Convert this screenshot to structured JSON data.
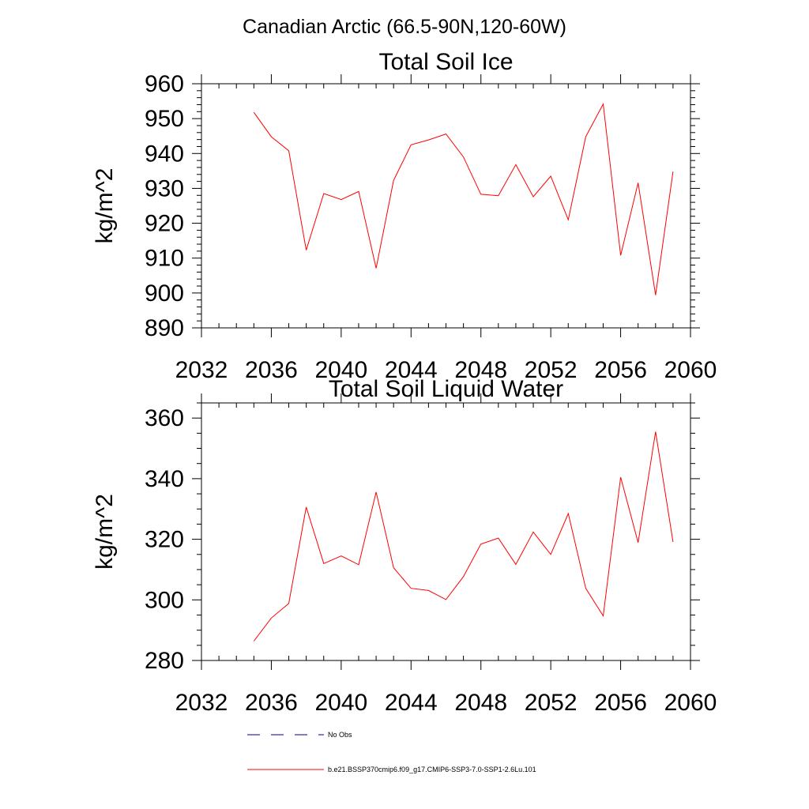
{
  "figure": {
    "suptitle": "Canadian Arctic (66.5-90N,120-60W)",
    "legend": {
      "entries": [
        {
          "label": "No Obs",
          "color": "#000080",
          "style": "dashed"
        },
        {
          "label": "b.e21.BSSP370cmip6.f09_g17.CMIP6-SSP3-7.0-SSP1-2.6Lu.101",
          "color": "#ff0000",
          "style": "solid"
        }
      ]
    }
  },
  "chart_data": [
    {
      "type": "line",
      "title": "Total Soil Ice",
      "xlabel": "",
      "ylabel": "kg/m^2",
      "xlim": [
        2032,
        2060
      ],
      "ylim": [
        890,
        960
      ],
      "xticks": [
        2032,
        2036,
        2040,
        2044,
        2048,
        2052,
        2056,
        2060
      ],
      "yticks": [
        890,
        900,
        910,
        920,
        930,
        940,
        950,
        960
      ],
      "x_minor_step": 1,
      "y_minor_step": 2,
      "grid": false,
      "series": [
        {
          "color": "#ff0000",
          "x": [
            2035,
            2036,
            2037,
            2038,
            2039,
            2040,
            2041,
            2042,
            2043,
            2044,
            2045,
            2046,
            2047,
            2048,
            2049,
            2050,
            2051,
            2052,
            2053,
            2054,
            2055,
            2056,
            2057,
            2058,
            2059
          ],
          "y": [
            951.8,
            944.8,
            940.8,
            912.3,
            928.5,
            926.8,
            929.1,
            907.1,
            932.3,
            942.5,
            943.9,
            945.6,
            939.0,
            928.3,
            927.9,
            936.8,
            927.6,
            933.5,
            921.0,
            944.8,
            954.2,
            910.8,
            931.6,
            899.4,
            934.8
          ]
        }
      ]
    },
    {
      "type": "line",
      "title": "Total Soil Liquid Water",
      "xlabel": "",
      "ylabel": "kg/m^2",
      "xlim": [
        2032,
        2060
      ],
      "ylim": [
        280,
        365
      ],
      "xticks": [
        2032,
        2036,
        2040,
        2044,
        2048,
        2052,
        2056,
        2060
      ],
      "yticks": [
        280,
        300,
        320,
        340,
        360
      ],
      "x_minor_step": 1,
      "y_minor_step": 5,
      "grid": false,
      "series": [
        {
          "color": "#ff0000",
          "x": [
            2035,
            2036,
            2037,
            2038,
            2039,
            2040,
            2041,
            2042,
            2043,
            2044,
            2045,
            2046,
            2047,
            2048,
            2049,
            2050,
            2051,
            2052,
            2053,
            2054,
            2055,
            2056,
            2057,
            2058,
            2059
          ],
          "y": [
            286.4,
            294.0,
            298.8,
            330.6,
            312.0,
            314.5,
            311.6,
            335.6,
            310.6,
            303.8,
            303.1,
            300.1,
            307.7,
            318.4,
            320.4,
            311.7,
            322.4,
            315.0,
            328.5,
            303.8,
            294.7,
            340.5,
            318.9,
            355.5,
            319.1
          ]
        }
      ]
    }
  ]
}
